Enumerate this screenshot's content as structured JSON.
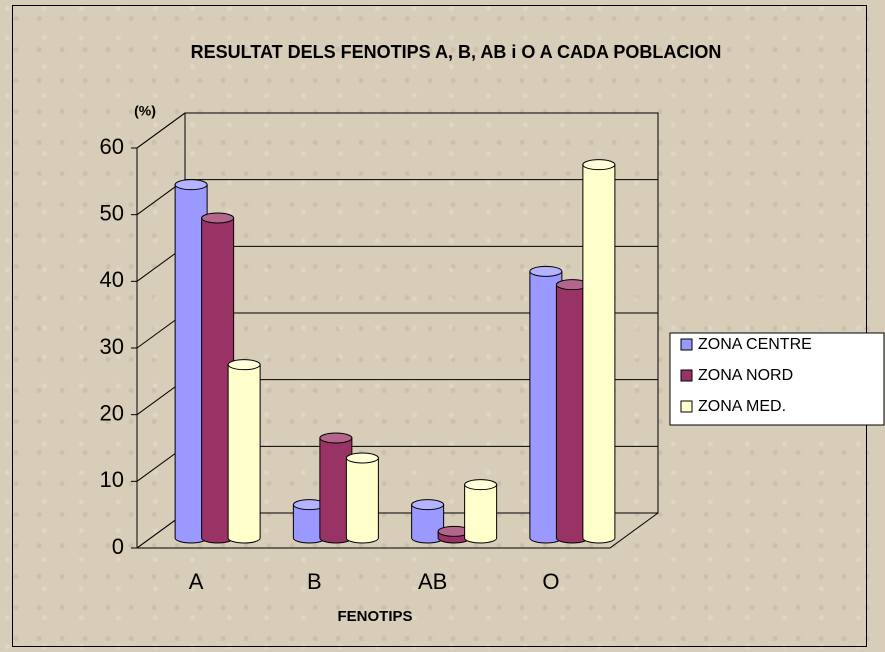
{
  "chart_data": {
    "type": "bar3d",
    "title": "RESULTAT DELS FENOTIPS A, B, AB i O A CADA POBLACION",
    "y_label": "(%)",
    "x_label": "FENOTIPS",
    "categories": [
      "A",
      "B",
      "AB",
      "O"
    ],
    "series": [
      {
        "name": "ZONA CENTRE",
        "color": "#9999ff",
        "values": [
          53,
          5,
          5,
          40
        ]
      },
      {
        "name": "ZONA NORD",
        "color": "#993366",
        "values": [
          48,
          15,
          1,
          38
        ]
      },
      {
        "name": "ZONA MED.",
        "color": "#ffffcc",
        "values": [
          26,
          12,
          8,
          56
        ]
      }
    ],
    "ylim": [
      0,
      60
    ],
    "yticks": [
      0,
      10,
      20,
      30,
      40,
      50,
      60
    ],
    "grid": true,
    "legend": "right"
  }
}
